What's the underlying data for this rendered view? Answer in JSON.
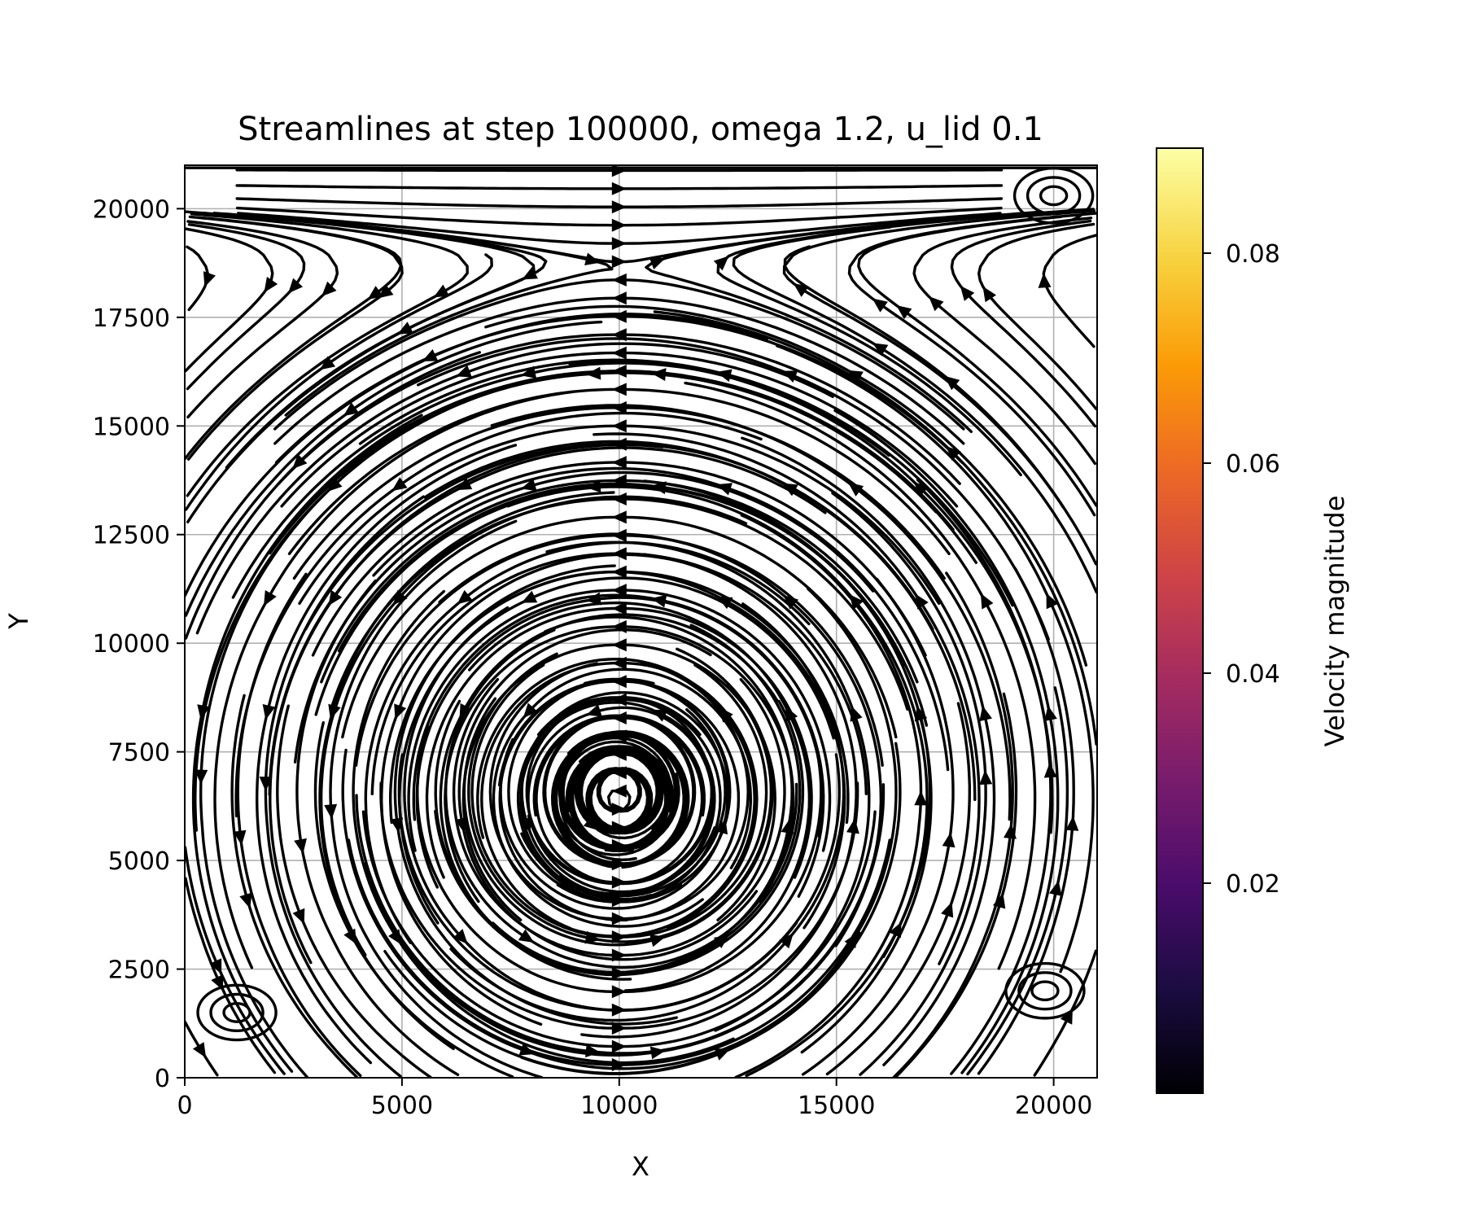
{
  "chart_data": {
    "type": "streamplot",
    "title": "Streamlines at step 100000, omega 1.2, u_lid 0.1",
    "xlabel": "X",
    "ylabel": "Y",
    "xlim": [
      0,
      21000
    ],
    "ylim": [
      0,
      21000
    ],
    "xticks": [
      0,
      5000,
      10000,
      15000,
      20000
    ],
    "yticks": [
      0,
      2500,
      5000,
      7500,
      10000,
      12500,
      15000,
      17500,
      20000
    ],
    "grid": true,
    "colormap": "inferno",
    "colorbar": {
      "label": "Velocity magnitude",
      "range": [
        0,
        0.09
      ],
      "ticks": [
        0.02,
        0.04,
        0.06,
        0.08
      ]
    },
    "flow": {
      "main_vortex_center": [
        10000,
        6500
      ],
      "circulation": "counterclockwise",
      "lid_speed": 0.1,
      "lid_flow_direction": "positive-x",
      "secondary_vortices": [
        {
          "location": "top-right",
          "center": [
            20000,
            20300
          ]
        },
        {
          "location": "bottom-left",
          "center": [
            1200,
            1500
          ]
        },
        {
          "location": "bottom-right",
          "center": [
            19800,
            2000
          ]
        }
      ]
    }
  }
}
